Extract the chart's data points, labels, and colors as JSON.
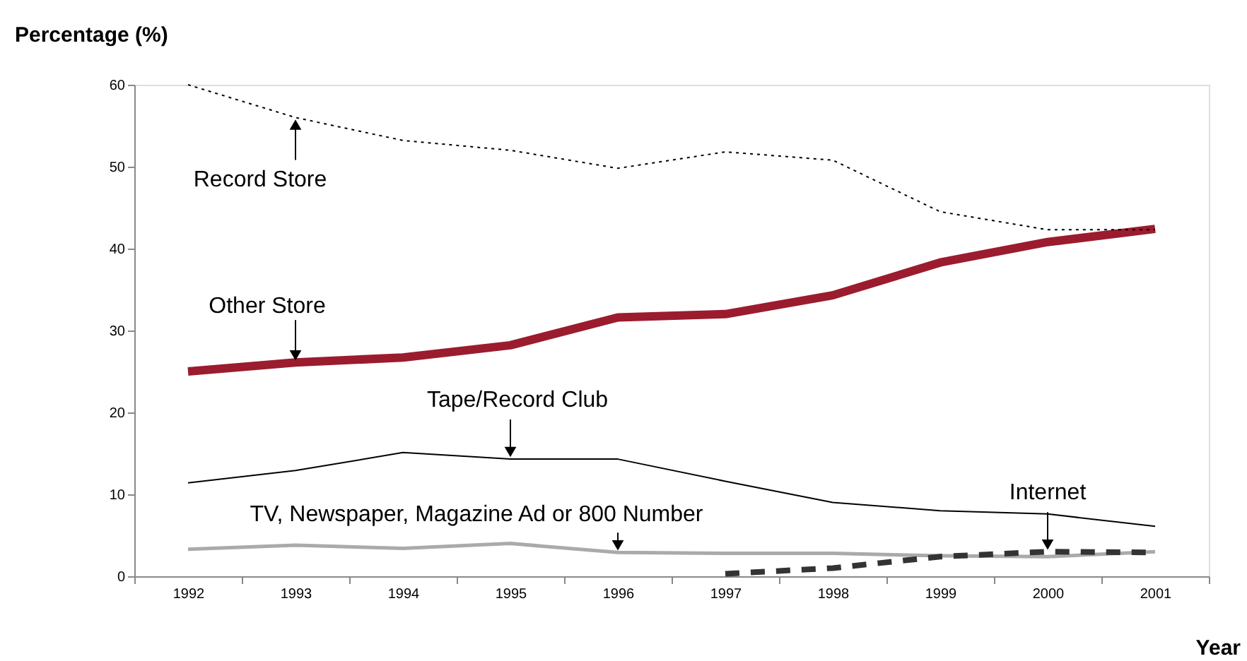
{
  "chart_data": {
    "type": "line",
    "xlabel": "Year",
    "ylabel": "Percentage (%)",
    "categories": [
      "1992",
      "1993",
      "1994",
      "1995",
      "1996",
      "1997",
      "1998",
      "1999",
      "2000",
      "2001"
    ],
    "series": [
      {
        "color": "#000000",
        "line_style": "dotted",
        "values": [
          60,
          56,
          53.2,
          52,
          49.8,
          51.8,
          50.8,
          44.5,
          42.3,
          42.3
        ]
      },
      {
        "color": "#9b1c2e",
        "line_style": "solid",
        "values": [
          25,
          26.1,
          26.7,
          28.2,
          31.6,
          32,
          34.3,
          38.3,
          40.8,
          42.4
        ]
      },
      {
        "color": "#000000",
        "line_style": "solid",
        "values": [
          11.4,
          12.9,
          15.1,
          14.3,
          14.3,
          11.6,
          9,
          8,
          7.6,
          6.1
        ]
      },
      {
        "color": "#aaaaaa",
        "line_style": "solid",
        "values": [
          3.3,
          3.8,
          3.4,
          4,
          2.9,
          2.8,
          2.8,
          2.5,
          2.4,
          3.0
        ]
      },
      {
        "color": "#333333",
        "line_style": "dashed",
        "values": [
          null,
          null,
          null,
          null,
          null,
          0.3,
          1.0,
          2.4,
          3.0,
          2.9
        ]
      }
    ],
    "annotations": [
      {
        "text": "Record Store",
        "x": "1993",
        "y": 56
      },
      {
        "text": "Other Store",
        "x": "1993",
        "y": 26.1
      },
      {
        "text": "Tape/Record Club",
        "x": "1995",
        "y": 14.3
      },
      {
        "text": "TV, Newspaper, Magazine Ad or 800 Number",
        "x": "1996",
        "y": 2.9
      },
      {
        "text": "Internet",
        "x": "2000",
        "y": 3.0
      }
    ],
    "ylim": [
      0,
      60
    ],
    "yticks": [
      0,
      10,
      20,
      30,
      40,
      50,
      60
    ],
    "grid": false,
    "marker": "none"
  }
}
